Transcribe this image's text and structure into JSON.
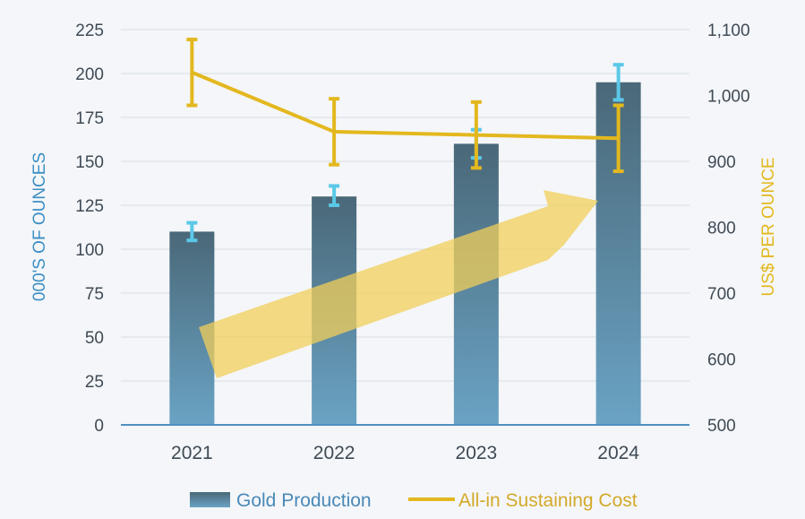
{
  "chart_data": {
    "type": "bar",
    "categories": [
      "2021",
      "2022",
      "2023",
      "2024"
    ],
    "series": [
      {
        "name": "Gold Production",
        "type": "bar",
        "axis": "left",
        "values": [
          110,
          130,
          160,
          195
        ],
        "error_low": [
          105,
          125,
          152,
          185
        ],
        "error_high": [
          115,
          136,
          168,
          205
        ],
        "color": "#4f7d96"
      },
      {
        "name": "All-in Sustaining Cost",
        "type": "line",
        "axis": "right",
        "values": [
          1035,
          945,
          940,
          935
        ],
        "error_low": [
          985,
          895,
          890,
          885
        ],
        "error_high": [
          1085,
          995,
          990,
          985
        ],
        "color": "#e3b81e"
      }
    ],
    "ylabel": "000'S OF OUNCES",
    "ylabel_right": "US$ PER OUNCE",
    "ylim": [
      0,
      225
    ],
    "ylim_right": [
      500,
      1100
    ],
    "yticks": [
      "0",
      "25",
      "50",
      "75",
      "100",
      "125",
      "150",
      "175",
      "200",
      "225"
    ],
    "yticks_right": [
      "500",
      "600",
      "700",
      "800",
      "900",
      "1,000",
      "1,100"
    ],
    "grid": true,
    "legend_position": "bottom",
    "annotations": [
      {
        "type": "arrow",
        "meaning": "upward trend in gold production"
      }
    ],
    "colors": {
      "left_axis_title": "#3d8fc4",
      "right_axis_title": "#e3b81e",
      "bar_top": "#4a6878",
      "bar_bottom": "#6aa3c4",
      "bar_error": "#5bc8e8",
      "line": "#e3b81e",
      "trend_arrow": "#f2cf5a",
      "legend_text_bar": "#4a89b8",
      "legend_text_line": "#d4a92a"
    }
  }
}
